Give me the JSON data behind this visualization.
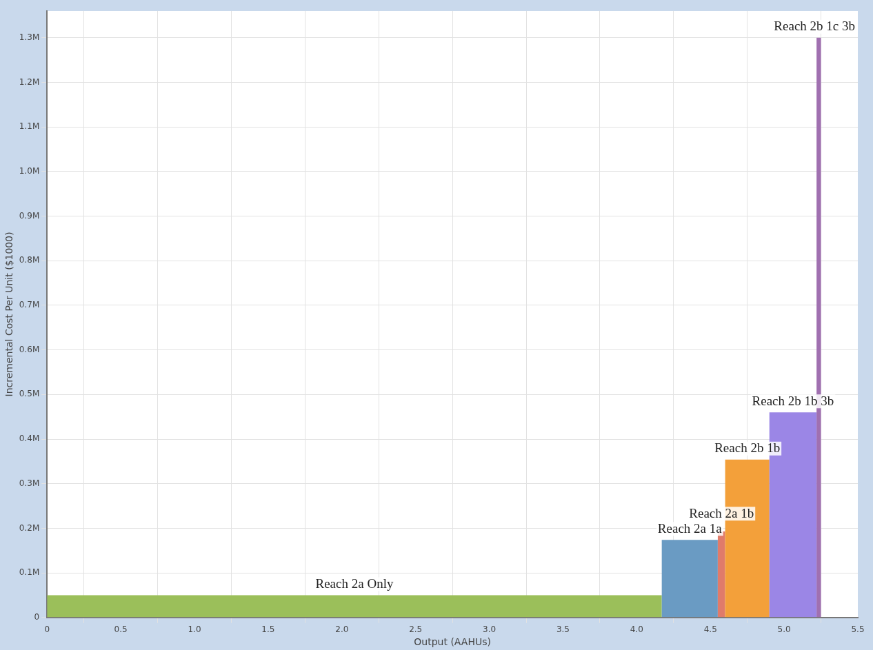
{
  "chart_data": {
    "type": "histogram",
    "bins": [
      0,
      4.17,
      4.55,
      4.6,
      4.9,
      5.22,
      5.25
    ],
    "values": [
      0.05,
      0.174,
      0.193,
      0.354,
      0.46,
      1.3
    ],
    "colors": [
      "#9bbf5a",
      "#6a9bc3",
      "#e07b6a",
      "#f3a03a",
      "#9b86e6",
      "#a070b0"
    ],
    "xlabel": "Output (AAHUs)",
    "ylabel": "Incremental Cost Per Unit ($1000)",
    "xlim": [
      0,
      5.5
    ],
    "xticks": [
      {
        "value": 0,
        "label": "0"
      },
      0.5,
      {
        "value": 1,
        "label": "1.0"
      },
      1.5,
      {
        "value": 2,
        "label": "2.0"
      },
      2.5,
      {
        "value": 3,
        "label": "3.0"
      },
      3.5,
      {
        "value": 4,
        "label": "4.0"
      },
      4.5,
      {
        "value": 5,
        "label": "5.0"
      },
      5.5
    ],
    "ylim": [
      0,
      1.36
    ],
    "yticks": [
      0,
      {
        "value": 0.1,
        "label": "0.1M"
      },
      {
        "value": 0.2,
        "label": "0.2M"
      },
      {
        "value": 0.3,
        "label": "0.3M"
      },
      {
        "value": 0.4,
        "label": "0.4M"
      },
      {
        "value": 0.5,
        "label": "0.5M"
      },
      {
        "value": 0.6,
        "label": "0.6M"
      },
      {
        "value": 0.7,
        "label": "0.7M"
      },
      {
        "value": 0.8,
        "label": "0.8M"
      },
      {
        "value": 0.9,
        "label": "0.9M"
      },
      {
        "value": 1.0,
        "label": "1.0M"
      },
      {
        "value": 1.1,
        "label": "1.1M"
      },
      {
        "value": 1.2,
        "label": "1.2M"
      },
      {
        "value": 1.3,
        "label": "1.3M"
      }
    ],
    "annotations": [
      {
        "text": "Reach 2a Only",
        "x": 2.085,
        "y": 0.05
      },
      {
        "text": "Reach 2a 1a",
        "x": 4.36,
        "y": 0.174
      },
      {
        "text": "Reach 2a 1b",
        "x": 4.575,
        "y": 0.193
      },
      {
        "text": "Reach 2b 1b",
        "x": 4.75,
        "y": 0.354
      },
      {
        "text": "Reach 2b 1b 3b",
        "x": 5.06,
        "y": 0.46
      },
      {
        "text": "Reach 2b 1c 3b",
        "x": 5.235,
        "y": 1.3
      }
    ],
    "grid": true,
    "legend": false
  }
}
